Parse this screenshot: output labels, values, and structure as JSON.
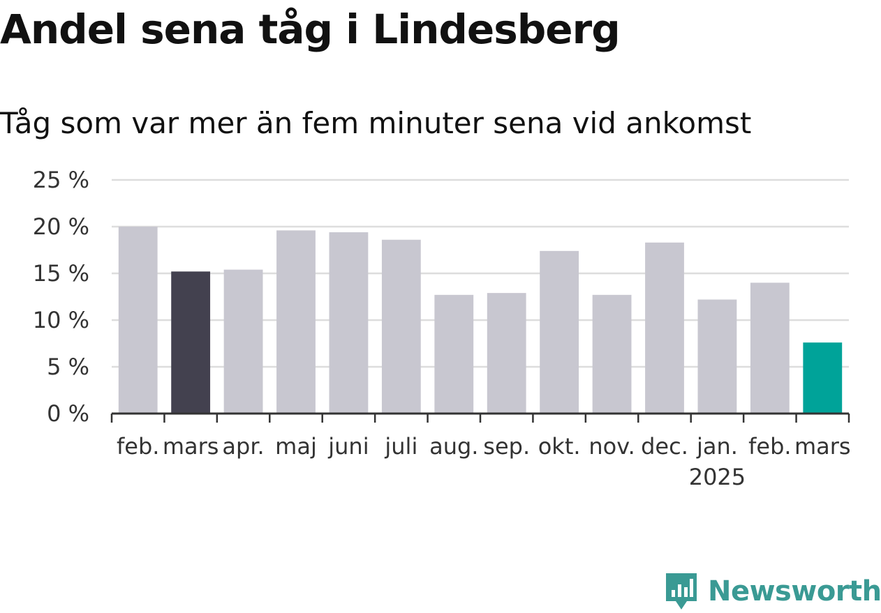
{
  "title": "Andel sena tåg i Lindesberg",
  "subtitle": "Tåg som var mer än fem minuter sena vid ankomst",
  "brand": {
    "name": "Newsworthy",
    "icon": "newsworthy-logo-icon",
    "color": "#3a9a94"
  },
  "colors": {
    "default_bar": "#c8c7d0",
    "comparison_bar": "#43414f",
    "current_bar": "#00a399",
    "grid": "#dddddd",
    "axis": "#333333"
  },
  "chart_data": {
    "type": "bar",
    "title": "Andel sena tåg i Lindesberg",
    "subtitle": "Tåg som var mer än fem minuter sena vid ankomst",
    "categories": [
      "feb.",
      "mars",
      "apr.",
      "maj",
      "juni",
      "juli",
      "aug.",
      "sep.",
      "okt.",
      "nov.",
      "dec.",
      "jan.",
      "feb.",
      "mars"
    ],
    "year_label": {
      "text": "2025",
      "category_index": 11
    },
    "values": [
      20.0,
      15.2,
      15.4,
      19.6,
      19.4,
      18.6,
      12.7,
      12.9,
      17.4,
      12.7,
      18.3,
      12.2,
      14.0,
      7.6
    ],
    "highlight": {
      "1": "comparison",
      "13": "current"
    },
    "ylim": [
      0,
      25
    ],
    "yticks": [
      0,
      5,
      10,
      15,
      20,
      25
    ],
    "ytick_labels": [
      "0 %",
      "5 %",
      "10 %",
      "15 %",
      "20 %",
      "25 %"
    ],
    "xlabel": "",
    "ylabel": "",
    "grid": true
  }
}
